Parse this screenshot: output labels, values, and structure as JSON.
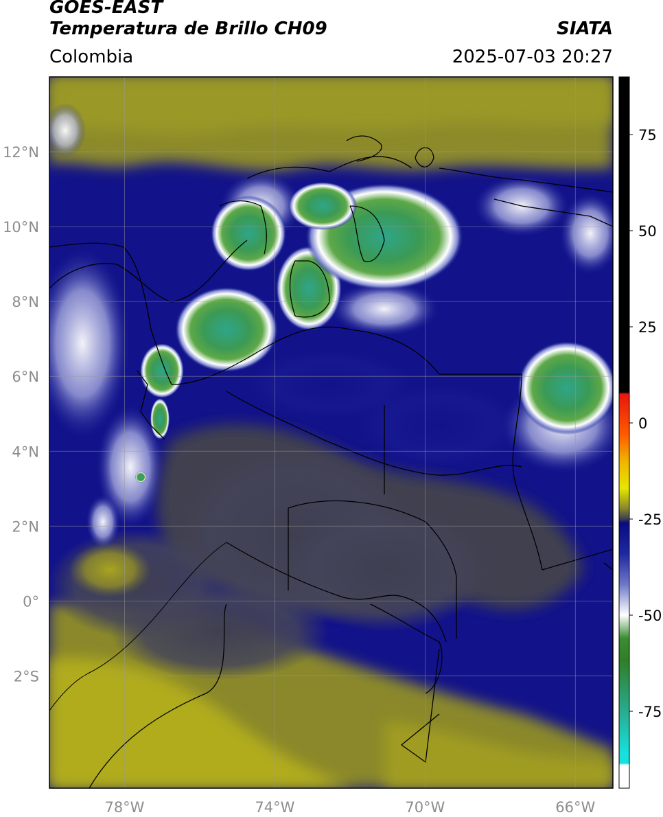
{
  "header": {
    "satellite": "GOES-EAST",
    "product": "Temperatura de Brillo CH09",
    "brand": "SIATA",
    "region": "Colombia",
    "datetime": "2025-07-03 20:27"
  },
  "map": {
    "lon_range": [
      -80,
      -65
    ],
    "lat_range": [
      -5,
      14
    ],
    "lon_ticks": [
      {
        "value": -78,
        "label": "78°W"
      },
      {
        "value": -74,
        "label": "74°W"
      },
      {
        "value": -70,
        "label": "70°W"
      },
      {
        "value": -66,
        "label": "66°W"
      }
    ],
    "lat_ticks": [
      {
        "value": 12,
        "label": "12°N"
      },
      {
        "value": 10,
        "label": "10°N"
      },
      {
        "value": 8,
        "label": "8°N"
      },
      {
        "value": 6,
        "label": "6°N"
      },
      {
        "value": 4,
        "label": "4°N"
      },
      {
        "value": 2,
        "label": "2°N"
      },
      {
        "value": 0,
        "label": "0°"
      },
      {
        "value": -2,
        "label": "2°S"
      }
    ],
    "grid": true
  },
  "colorbar": {
    "range": [
      -95,
      90
    ],
    "ticks": [
      {
        "value": 75,
        "label": "75"
      },
      {
        "value": 50,
        "label": "50"
      },
      {
        "value": 25,
        "label": "25"
      },
      {
        "value": 0,
        "label": "0"
      },
      {
        "value": -25,
        "label": "-25"
      },
      {
        "value": -50,
        "label": "-50"
      },
      {
        "value": -75,
        "label": "-75"
      }
    ],
    "stops": [
      {
        "value": 90,
        "color": "#000000"
      },
      {
        "value": 8,
        "color": "#000000"
      },
      {
        "value": 7.5,
        "color": "#e8160e"
      },
      {
        "value": -3,
        "color": "#ff5a00"
      },
      {
        "value": -10,
        "color": "#f0b400"
      },
      {
        "value": -17,
        "color": "#e6e600"
      },
      {
        "value": -22,
        "color": "#8c8c28"
      },
      {
        "value": -25,
        "color": "#3e3e50"
      },
      {
        "value": -26,
        "color": "#0a0a82"
      },
      {
        "value": -34,
        "color": "#1e28a0"
      },
      {
        "value": -42,
        "color": "#6e78c8"
      },
      {
        "value": -50,
        "color": "#ffffff"
      },
      {
        "value": -56,
        "color": "#3c8c32"
      },
      {
        "value": -62,
        "color": "#2f7f28"
      },
      {
        "value": -74,
        "color": "#2aa888"
      },
      {
        "value": -86,
        "color": "#18e0dc"
      },
      {
        "value": -88.5,
        "color": "#18e0dc"
      },
      {
        "value": -89,
        "color": "#ffffff"
      },
      {
        "value": -95,
        "color": "#ffffff"
      }
    ]
  }
}
